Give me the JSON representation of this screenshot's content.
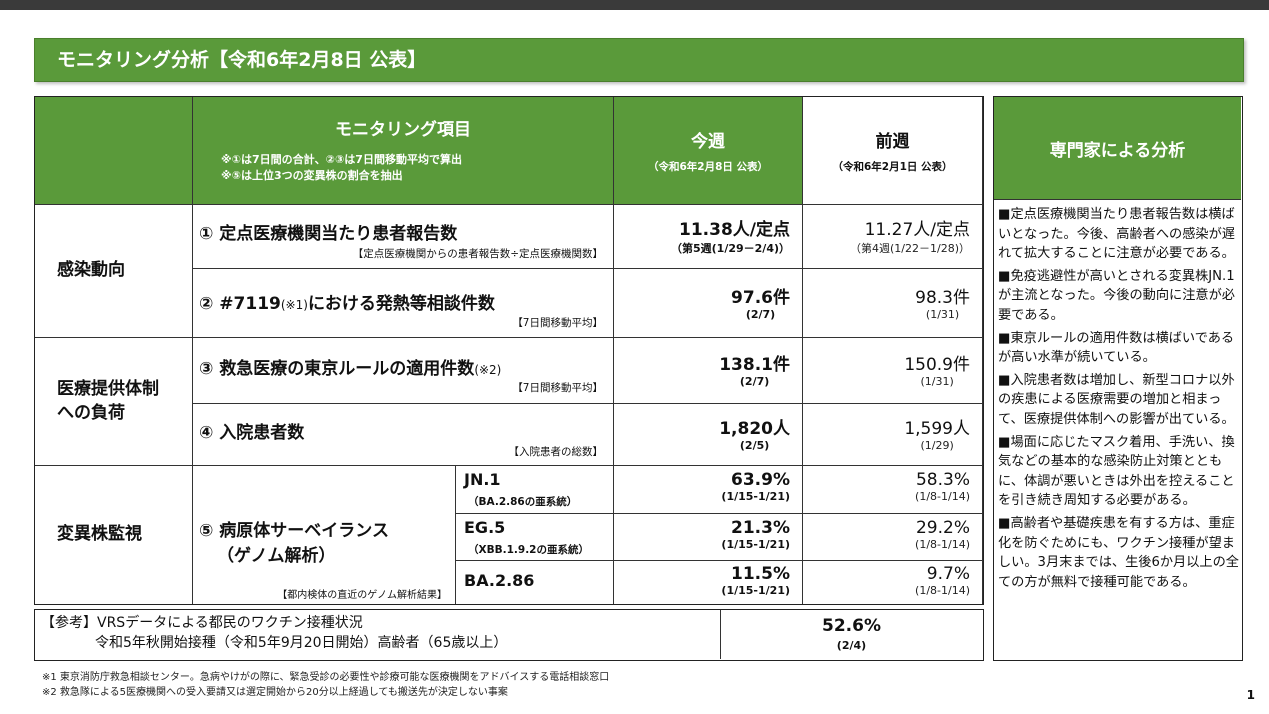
{
  "banner": {
    "title": "モニタリング分析【令和6年2月8日 公表】"
  },
  "header": {
    "item_title": "モニタリング項目",
    "item_note1": "※①は7日間の合計、②③は7日間移動平均で算出",
    "item_note2": "※⑤は上位3つの変異株の割合を抽出",
    "this_week": "今週",
    "this_week_date": "（令和6年2月8日 公表）",
    "last_week": "前週",
    "last_week_date": "（令和6年2月1日 公表）"
  },
  "categories": {
    "infection": "感染動向",
    "medical_line1": "医療提供体制",
    "medical_line2": "への負荷",
    "variant": "変異株監視"
  },
  "rows": {
    "r1": {
      "title": "① 定点医療機関当たり患者報告数",
      "note": "【定点医療機関からの患者報告数÷定点医療機関数】",
      "this_value": "11.38人/定点",
      "this_period": "（第5週(1/29－2/4)）",
      "prev_value": "11.27人/定点",
      "prev_period": "（第4週(1/22－1/28)）"
    },
    "r2": {
      "title_pre": "② #7119",
      "title_small": "(※1)",
      "title_post": "における発熱等相談件数",
      "note": "【7日間移動平均】",
      "this_value": "97.6件",
      "this_period": "(2/7)",
      "prev_value": "98.3件",
      "prev_period": "(1/31)"
    },
    "r3": {
      "title_pre": "③ 救急医療の東京ルールの適用件数",
      "title_small": "(※2)",
      "note": "【7日間移動平均】",
      "this_value": "138.1件",
      "this_period": "(2/7)",
      "prev_value": "150.9件",
      "prev_period": "(1/31)"
    },
    "r4": {
      "title": "④ 入院患者数",
      "note": "【入院患者の総数】",
      "this_value": "1,820人",
      "this_period": "(2/5)",
      "prev_value": "1,599人",
      "prev_period": "(1/29)"
    },
    "r5": {
      "title_line1": "⑤ 病原体サーベイランス",
      "title_line2": "（ゲノム解析）",
      "note": "【都内検体の直近のゲノム解析結果】",
      "variants": [
        {
          "name": "JN.1",
          "sub": "（BA.2.86の亜系統）",
          "this_value": "63.9%",
          "this_period": "(1/15-1/21)",
          "prev_value": "58.3%",
          "prev_period": "(1/8-1/14)"
        },
        {
          "name": "EG.5",
          "sub": "（XBB.1.9.2の亜系統）",
          "this_value": "21.3%",
          "this_period": "(1/15-1/21)",
          "prev_value": "29.2%",
          "prev_period": "(1/8-1/14)"
        },
        {
          "name": "BA.2.86",
          "sub": "",
          "this_value": "11.5%",
          "this_period": "(1/15-1/21)",
          "prev_value": "9.7%",
          "prev_period": "(1/8-1/14)"
        }
      ]
    }
  },
  "reference": {
    "line1": "【参考】VRSデータによる都民のワクチン接種状況",
    "line2": "令和5年秋開始接種（令和5年9月20日開始）高齢者（65歳以上）",
    "value": "52.6%",
    "period": "(2/4)"
  },
  "expert": {
    "title": "専門家による分析",
    "paragraphs": [
      "■定点医療機関当たり患者報告数は横ばいとなった。今後、高齢者への感染が遅れて拡大することに注意が必要である。",
      "■免疫逃避性が高いとされる変異株JN.1が主流となった。今後の動向に注意が必要である。",
      "■東京ルールの適用件数は横ばいであるが高い水準が続いている。",
      "■入院患者数は増加し、新型コロナ以外の疾患による医療需要の増加と相まって、医療提供体制への影響が出ている。",
      "■場面に応じたマスク着用、手洗い、換気などの基本的な感染防止対策とともに、体調が悪いときは外出を控えることを引き続き周知する必要がある。",
      "■高齢者や基礎疾患を有する方は、重症化を防ぐためにも、ワクチン接種が望ましい。3月末までは、生後6か月以上の全ての方が無料で接種可能である。"
    ]
  },
  "footnotes": {
    "note1": "※1 東京消防庁救急相談センター。急病やけがの際に、緊急受診の必要性や診療可能な医療機関をアドバイスする電話相談窓口",
    "note2": "※2 救急隊による5医療機関への受入要請又は選定開始から20分以上経過しても搬送先が決定しない事案"
  },
  "page_number": "1"
}
